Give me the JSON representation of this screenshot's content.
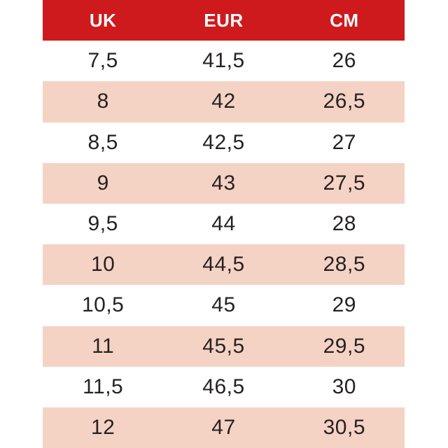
{
  "chart_data": {
    "type": "table",
    "columns": [
      "UK",
      "EUR",
      "CM"
    ],
    "rows": [
      [
        "7,5",
        "41,5",
        "26"
      ],
      [
        "8",
        "42",
        "26,5"
      ],
      [
        "8,5",
        "42,5",
        "27"
      ],
      [
        "9",
        "43",
        "27,5"
      ],
      [
        "9,5",
        "44",
        "28"
      ],
      [
        "10",
        "44,5",
        "28,5"
      ],
      [
        "10,5",
        "45",
        "29"
      ],
      [
        "11",
        "45,5",
        "29,5"
      ],
      [
        "11,5",
        "46,5",
        "30"
      ],
      [
        "12",
        "47",
        "30,5"
      ]
    ]
  },
  "colors": {
    "header_bg": "#ce1a1d",
    "header_text": "#ffffff",
    "alt_row_bg": "#f5d3c4",
    "row_bg": "#ffffff",
    "text": "#262223"
  }
}
